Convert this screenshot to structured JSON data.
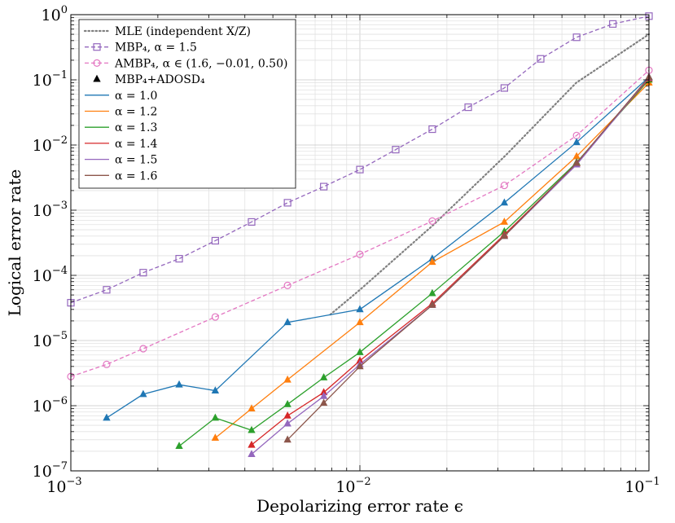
{
  "chart_data": {
    "type": "line",
    "xlabel": "Depolarizing error rate ϵ",
    "ylabel": "Logical error rate",
    "x_scale": "log",
    "y_scale": "log",
    "xlim": [
      0.001,
      0.1
    ],
    "ylim": [
      1e-07,
      1
    ],
    "grid": true,
    "legend_position": "top-left",
    "x_ticks": [
      {
        "base": "10",
        "exp": "−3",
        "value": 0.001
      },
      {
        "base": "10",
        "exp": "−2",
        "value": 0.01
      },
      {
        "base": "10",
        "exp": "−1",
        "value": 0.1
      }
    ],
    "y_ticks": [
      {
        "base": "10",
        "exp": "0",
        "value": 1
      },
      {
        "base": "10",
        "exp": "−1",
        "value": 0.1
      },
      {
        "base": "10",
        "exp": "−2",
        "value": 0.01
      },
      {
        "base": "10",
        "exp": "−3",
        "value": 0.001
      },
      {
        "base": "10",
        "exp": "−4",
        "value": 0.0001
      },
      {
        "base": "10",
        "exp": "−5",
        "value": 1e-05
      },
      {
        "base": "10",
        "exp": "−6",
        "value": 1e-06
      },
      {
        "base": "10",
        "exp": "−7",
        "value": 1e-07
      }
    ],
    "legend": [
      {
        "label": "MLE (independent X/Z)",
        "style": "dotted",
        "color": "#808080",
        "marker": "none"
      },
      {
        "label": "MBP₄, α = 1.5",
        "style": "dashed",
        "color": "#9467bd",
        "marker": "square"
      },
      {
        "label": "AMBP₄, α ∈ (1.6, −0.01, 0.50)",
        "style": "dashed",
        "color": "#e377c2",
        "marker": "circle"
      },
      {
        "label": "MBP₄+ADOSD₄",
        "style": "none",
        "color": "#000000",
        "marker": "triangle"
      },
      {
        "label": "α = 1.0",
        "style": "solid",
        "color": "#1f77b4",
        "marker": "none"
      },
      {
        "label": "α = 1.2",
        "style": "solid",
        "color": "#ff7f0e",
        "marker": "none"
      },
      {
        "label": "α = 1.3",
        "style": "solid",
        "color": "#2ca02c",
        "marker": "none"
      },
      {
        "label": "α = 1.4",
        "style": "solid",
        "color": "#d62728",
        "marker": "none"
      },
      {
        "label": "α = 1.5",
        "style": "solid",
        "color": "#9467bd",
        "marker": "none"
      },
      {
        "label": "α = 1.6",
        "style": "solid",
        "color": "#8c564b",
        "marker": "none"
      }
    ],
    "series": [
      {
        "name": "MLE (independent X/Z)",
        "color": "#808080",
        "style": "dotted",
        "marker": "none",
        "x": [
          0.0079,
          0.01,
          0.018,
          0.032,
          0.056,
          0.1
        ],
        "y": [
          2.5e-05,
          6e-05,
          0.0006,
          0.007,
          0.09,
          0.5
        ]
      },
      {
        "name": "MBP₄, α = 1.5",
        "color": "#9467bd",
        "style": "dashed",
        "marker": "square",
        "x": [
          0.001,
          0.00133,
          0.00178,
          0.00237,
          0.00316,
          0.00422,
          0.00562,
          0.0075,
          0.01,
          0.0133,
          0.0178,
          0.0237,
          0.0316,
          0.0422,
          0.0562,
          0.075,
          0.1
        ],
        "y": [
          3.8e-05,
          6e-05,
          0.00011,
          0.00018,
          0.00034,
          0.00066,
          0.0013,
          0.0023,
          0.0042,
          0.0085,
          0.0175,
          0.038,
          0.075,
          0.21,
          0.45,
          0.72,
          0.95
        ]
      },
      {
        "name": "AMBP₄, α ∈ (1.6, −0.01, 0.50)",
        "color": "#e377c2",
        "style": "dashed",
        "marker": "circle",
        "x": [
          0.001,
          0.00133,
          0.00178,
          0.00316,
          0.00562,
          0.01,
          0.0178,
          0.0316,
          0.0562,
          0.1
        ],
        "y": [
          2.8e-06,
          4.3e-06,
          7.5e-06,
          2.3e-05,
          7e-05,
          0.00021,
          0.00068,
          0.0024,
          0.014,
          0.14
        ]
      },
      {
        "name": "α = 1.0",
        "color": "#1f77b4",
        "style": "solid",
        "marker": "triangle",
        "x": [
          0.00133,
          0.00178,
          0.00237,
          0.00316,
          0.00562,
          0.01,
          0.0178,
          0.0316,
          0.0562,
          0.1
        ],
        "y": [
          6.5e-07,
          1.5e-06,
          2.1e-06,
          1.7e-06,
          1.9e-05,
          3e-05,
          0.00018,
          0.0013,
          0.011,
          0.11
        ]
      },
      {
        "name": "α = 1.2",
        "color": "#ff7f0e",
        "style": "solid",
        "marker": "triangle",
        "x": [
          0.00316,
          0.00422,
          0.00562,
          0.01,
          0.0178,
          0.0316,
          0.0562,
          0.1
        ],
        "y": [
          3.2e-07,
          9e-07,
          2.5e-06,
          1.9e-05,
          0.00016,
          0.00066,
          0.0067,
          0.09
        ]
      },
      {
        "name": "α = 1.3",
        "color": "#2ca02c",
        "style": "solid",
        "marker": "triangle",
        "x": [
          0.00237,
          0.00316,
          0.00422,
          0.00562,
          0.0075,
          0.01,
          0.0178,
          0.0316,
          0.0562,
          0.1
        ],
        "y": [
          2.4e-07,
          6.5e-07,
          4.2e-07,
          1.05e-06,
          2.7e-06,
          6.6e-06,
          5.3e-05,
          0.00047,
          0.0054,
          0.1
        ]
      },
      {
        "name": "α = 1.4",
        "color": "#d62728",
        "style": "solid",
        "marker": "triangle",
        "x": [
          0.00422,
          0.00562,
          0.0075,
          0.01,
          0.0178,
          0.0316,
          0.0562,
          0.1
        ],
        "y": [
          2.5e-07,
          7e-07,
          1.6e-06,
          4.9e-06,
          3.7e-05,
          0.00042,
          0.0052,
          0.105
        ]
      },
      {
        "name": "α = 1.5",
        "color": "#9467bd",
        "style": "solid",
        "marker": "triangle",
        "x": [
          0.00422,
          0.00562,
          0.0075,
          0.01,
          0.0178,
          0.0316,
          0.0562,
          0.1
        ],
        "y": [
          1.8e-07,
          5.3e-07,
          1.4e-06,
          4.3e-06,
          3.5e-05,
          0.0004,
          0.005,
          0.108
        ]
      },
      {
        "name": "α = 1.6",
        "color": "#8c564b",
        "style": "solid",
        "marker": "triangle",
        "x": [
          0.00562,
          0.0075,
          0.01,
          0.0178,
          0.0316,
          0.0562,
          0.1
        ],
        "y": [
          3e-07,
          1.1e-06,
          4e-06,
          3.5e-05,
          0.0004,
          0.0053,
          0.11
        ]
      }
    ]
  }
}
